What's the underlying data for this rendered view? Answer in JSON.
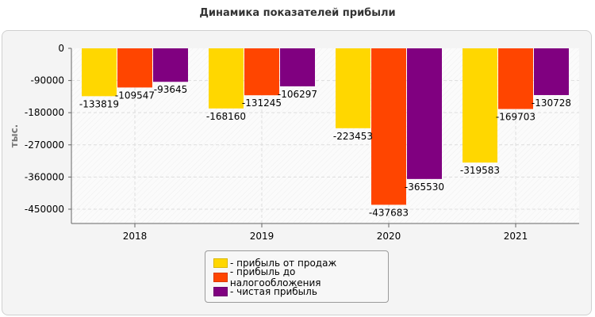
{
  "chart_data": {
    "type": "bar",
    "title": "Динамика показателей прибыли",
    "ylabel": "тыс.",
    "xlabel": "",
    "categories": [
      "2018",
      "2019",
      "2020",
      "2021"
    ],
    "ylim": [
      -490000,
      0
    ],
    "yticks": [
      0,
      -90000,
      -180000,
      -270000,
      -360000,
      -450000
    ],
    "grid": true,
    "legend_position": "bottom",
    "series": [
      {
        "name": "- прибыль от продаж",
        "color": "#FFD700",
        "values": [
          -133819,
          -168160,
          -223453,
          -319583
        ]
      },
      {
        "name": "- прибыль до налогообложения",
        "color": "#FF4500",
        "values": [
          -109547,
          -131245,
          -437683,
          -169703
        ]
      },
      {
        "name": "- чистая прибыль",
        "color": "#800080",
        "values": [
          -93645,
          -106297,
          -365530,
          -130728
        ]
      }
    ]
  }
}
